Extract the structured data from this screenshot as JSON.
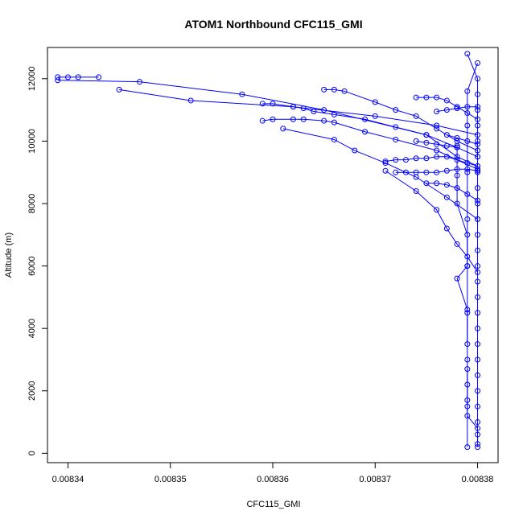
{
  "chart_data": {
    "type": "line",
    "title": "ATOM1 Northbound CFC115_GMI",
    "xlabel": "CFC115_GMI",
    "ylabel": "Altitude (m)",
    "xlim": [
      0.008338,
      0.008382
    ],
    "ylim": [
      -300,
      13000
    ],
    "xticks": [
      "0.00834",
      "0.00835",
      "0.00836",
      "0.00837",
      "0.00838"
    ],
    "xtick_values": [
      0.00834,
      0.00835,
      0.00836,
      0.00837,
      0.00838
    ],
    "yticks": [
      "0",
      "2000",
      "4000",
      "6000",
      "8000",
      "10000",
      "12000"
    ],
    "ytick_values": [
      0,
      2000,
      4000,
      6000,
      8000,
      10000,
      12000
    ],
    "grid": false,
    "legend": "none",
    "marker": "open-circle",
    "color": "#0000ff",
    "series": [
      {
        "points": [
          [
            0.00838,
            200
          ],
          [
            0.00838,
            600
          ],
          [
            0.00838,
            1000
          ],
          [
            0.00838,
            1500
          ],
          [
            0.00838,
            2000
          ],
          [
            0.00838,
            2500
          ],
          [
            0.00838,
            3000
          ],
          [
            0.00838,
            3500
          ],
          [
            0.00838,
            4000
          ],
          [
            0.00838,
            4500
          ],
          [
            0.00838,
            5000
          ],
          [
            0.00838,
            5500
          ],
          [
            0.00838,
            6000
          ],
          [
            0.00838,
            6500
          ],
          [
            0.00838,
            7000
          ],
          [
            0.00838,
            7500
          ],
          [
            0.00838,
            8000
          ],
          [
            0.00838,
            8500
          ],
          [
            0.00838,
            9000
          ],
          [
            0.00838,
            9500
          ],
          [
            0.00838,
            10000
          ],
          [
            0.00838,
            10500
          ],
          [
            0.00838,
            11000
          ],
          [
            0.00838,
            11500
          ],
          [
            0.00838,
            12000
          ],
          [
            0.008379,
            12800
          ]
        ]
      },
      {
        "points": [
          [
            0.008379,
            200
          ],
          [
            0.008379,
            1500
          ],
          [
            0.008379,
            3000
          ],
          [
            0.008379,
            4500
          ],
          [
            0.008379,
            6000
          ],
          [
            0.008379,
            7500
          ],
          [
            0.008379,
            9000
          ],
          [
            0.008379,
            10500
          ],
          [
            0.008379,
            11600
          ],
          [
            0.00838,
            12500
          ]
        ]
      },
      {
        "points": [
          [
            0.00838,
            9200
          ],
          [
            0.008378,
            9500
          ],
          [
            0.008375,
            10200
          ],
          [
            0.008365,
            11000
          ],
          [
            0.008357,
            11500
          ],
          [
            0.008347,
            11900
          ],
          [
            0.008339,
            11950
          ]
        ]
      },
      {
        "points": [
          [
            0.008339,
            12050
          ],
          [
            0.00834,
            12050
          ],
          [
            0.008341,
            12050
          ],
          [
            0.008343,
            12050
          ]
        ]
      },
      {
        "points": [
          [
            0.00838,
            10200
          ],
          [
            0.008376,
            10500
          ],
          [
            0.00837,
            10800
          ],
          [
            0.008362,
            11100
          ],
          [
            0.008352,
            11300
          ],
          [
            0.008345,
            11650
          ]
        ]
      },
      {
        "points": [
          [
            0.008359,
            11200
          ],
          [
            0.00836,
            11200
          ],
          [
            0.008362,
            11100
          ],
          [
            0.008363,
            11050
          ],
          [
            0.008364,
            10950
          ],
          [
            0.008366,
            10850
          ],
          [
            0.008369,
            10700
          ],
          [
            0.008372,
            10450
          ],
          [
            0.008375,
            10200
          ],
          [
            0.008378,
            9800
          ],
          [
            0.00838,
            9500
          ]
        ]
      },
      {
        "points": [
          [
            0.008359,
            10650
          ],
          [
            0.00836,
            10700
          ],
          [
            0.008362,
            10700
          ],
          [
            0.008363,
            10700
          ],
          [
            0.008365,
            10650
          ],
          [
            0.008366,
            10600
          ],
          [
            0.008369,
            10300
          ],
          [
            0.008372,
            10050
          ],
          [
            0.008376,
            9700
          ],
          [
            0.00838,
            9100
          ]
        ]
      },
      {
        "points": [
          [
            0.008361,
            10400
          ],
          [
            0.008366,
            10050
          ],
          [
            0.008368,
            9700
          ],
          [
            0.008371,
            9300
          ],
          [
            0.008374,
            8850
          ],
          [
            0.008377,
            8200
          ],
          [
            0.00838,
            7500
          ]
        ]
      },
      {
        "points": [
          [
            0.008365,
            11650
          ],
          [
            0.008366,
            11650
          ],
          [
            0.008367,
            11600
          ],
          [
            0.00837,
            11250
          ],
          [
            0.008372,
            11000
          ],
          [
            0.008374,
            10800
          ],
          [
            0.008376,
            10400
          ],
          [
            0.008378,
            10000
          ],
          [
            0.00838,
            9700
          ]
        ]
      },
      {
        "points": [
          [
            0.008371,
            9350
          ],
          [
            0.008372,
            9400
          ],
          [
            0.008373,
            9400
          ],
          [
            0.008374,
            9450
          ],
          [
            0.008375,
            9450
          ],
          [
            0.008376,
            9500
          ],
          [
            0.008377,
            9500
          ],
          [
            0.008378,
            9400
          ],
          [
            0.008379,
            9300
          ],
          [
            0.00838,
            9200
          ]
        ]
      },
      {
        "points": [
          [
            0.008372,
            9000
          ],
          [
            0.008373,
            9000
          ],
          [
            0.008374,
            9000
          ],
          [
            0.008375,
            9000
          ],
          [
            0.008376,
            9000
          ],
          [
            0.008377,
            9050
          ],
          [
            0.008378,
            9100
          ],
          [
            0.008379,
            9100
          ],
          [
            0.00838,
            9050
          ]
        ]
      },
      {
        "points": [
          [
            0.008371,
            9050
          ],
          [
            0.008374,
            8400
          ],
          [
            0.008376,
            7800
          ],
          [
            0.008377,
            7200
          ],
          [
            0.008378,
            6700
          ],
          [
            0.008379,
            6300
          ],
          [
            0.00838,
            5800
          ]
        ]
      },
      {
        "points": [
          [
            0.008374,
            11400
          ],
          [
            0.008375,
            11400
          ],
          [
            0.008376,
            11400
          ],
          [
            0.008377,
            11300
          ],
          [
            0.008378,
            11100
          ],
          [
            0.008379,
            10900
          ],
          [
            0.00838,
            10700
          ]
        ]
      },
      {
        "points": [
          [
            0.008376,
            10950
          ],
          [
            0.008377,
            11000
          ],
          [
            0.008378,
            11050
          ],
          [
            0.008379,
            11100
          ],
          [
            0.00838,
            11100
          ]
        ]
      },
      {
        "points": [
          [
            0.008375,
            8650
          ],
          [
            0.008376,
            8650
          ],
          [
            0.008377,
            8600
          ],
          [
            0.008378,
            8500
          ],
          [
            0.008379,
            8300
          ],
          [
            0.00838,
            8100
          ]
        ]
      },
      {
        "points": [
          [
            0.008378,
            9850
          ],
          [
            0.008378,
            8900
          ],
          [
            0.008378,
            8000
          ],
          [
            0.008379,
            7000
          ],
          [
            0.008379,
            6000
          ],
          [
            0.008378,
            5600
          ],
          [
            0.008379,
            4600
          ],
          [
            0.008379,
            3500
          ]
        ]
      },
      {
        "points": [
          [
            0.008379,
            2700
          ],
          [
            0.008379,
            2200
          ],
          [
            0.008379,
            1700
          ],
          [
            0.008379,
            1200
          ],
          [
            0.00838,
            800
          ],
          [
            0.00838,
            300
          ]
        ]
      },
      {
        "points": [
          [
            0.008377,
            10200
          ],
          [
            0.008378,
            10100
          ],
          [
            0.008379,
            10000
          ],
          [
            0.00838,
            9900
          ]
        ]
      },
      {
        "points": [
          [
            0.008374,
            10000
          ],
          [
            0.008375,
            9950
          ],
          [
            0.008376,
            9900
          ],
          [
            0.008377,
            9850
          ],
          [
            0.008378,
            9800
          ]
        ]
      }
    ]
  }
}
